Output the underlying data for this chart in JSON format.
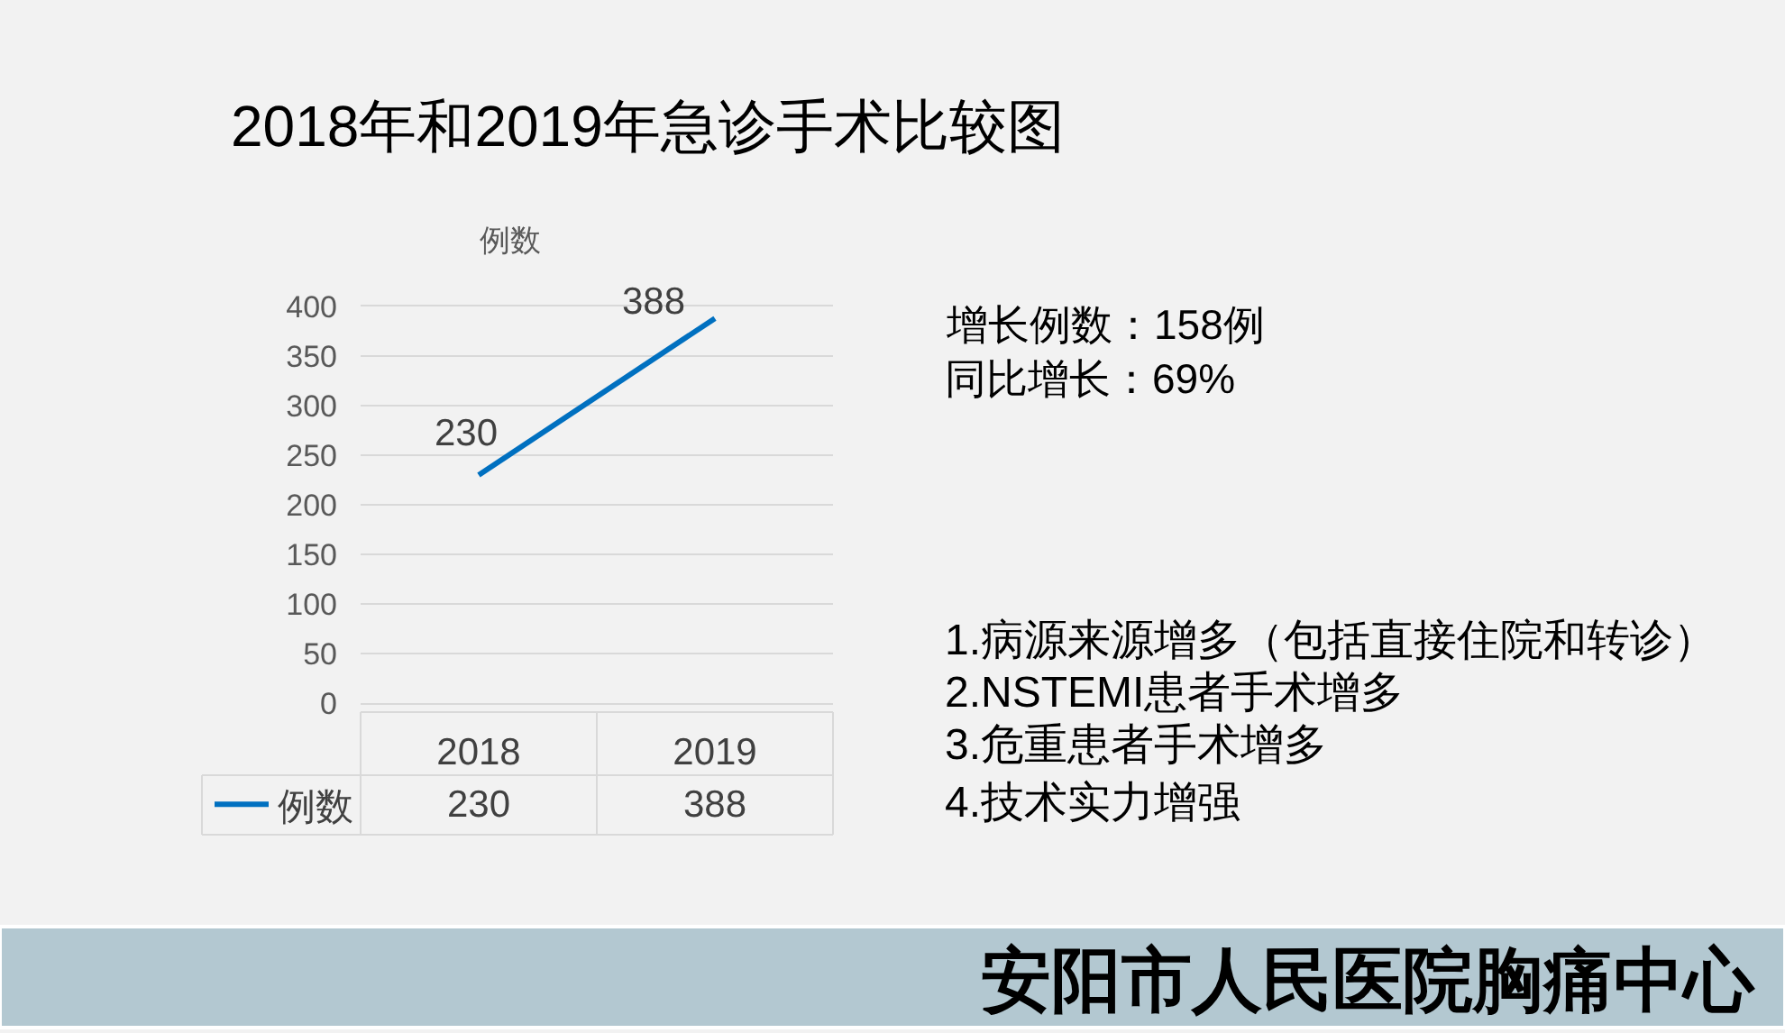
{
  "chart_data": {
    "type": "line",
    "title": "2018年和2019年急诊手术比较图",
    "ylabel": "例数",
    "categories": [
      "2018",
      "2019"
    ],
    "series": [
      {
        "name": "例数",
        "color": "#0070c0",
        "values": [
          230,
          388
        ]
      }
    ],
    "ylim": [
      0,
      400
    ],
    "yticks": [
      0,
      50,
      100,
      150,
      200,
      250,
      300,
      350,
      400
    ],
    "grid": "y",
    "legend": "bottom left",
    "data_labels": true,
    "annotations": [
      {
        "text": "230",
        "x": "2018",
        "y": 230
      },
      {
        "text": "388",
        "x": "2019",
        "y": 388
      },
      "增长例数：158例",
      "同比增长：69%",
      "1.病源来源增多（包括直接住院和转诊）",
      "2.NSTEMI患者手术增多",
      "3.危重患者手术增多",
      "4.技术实力增强",
      "安阳市人民医院胸痛中心"
    ]
  }
}
